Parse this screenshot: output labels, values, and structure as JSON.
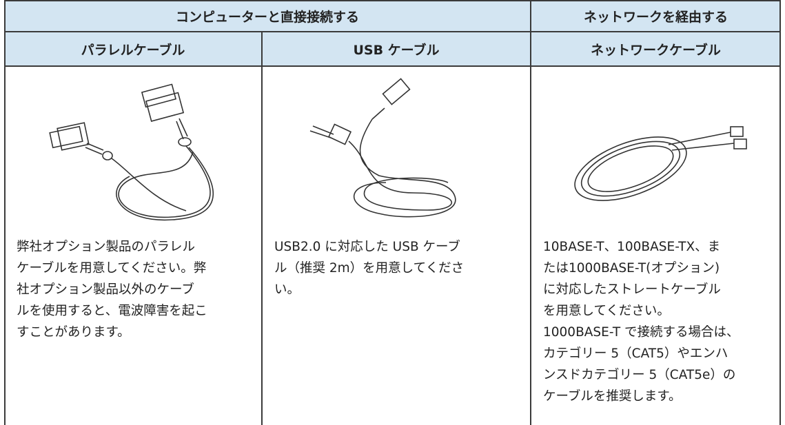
{
  "table": {
    "header_top": [
      "コンピューターと直接接続する",
      "ネットワークを経由する"
    ],
    "header_sub": [
      "パラレルケーブル",
      "USB ケーブル",
      "ネットワークケーブル"
    ],
    "cells": [
      {
        "lines": [
          "弊社オプション製品のパラレル",
          "ケーブルを用意してください。弊",
          "社オプション製品以外のケーブ",
          "ルを使用すると、電波障害を起こ",
          "すことがあります。"
        ]
      },
      {
        "lines": [
          "USB2.0 に対応した USB ケーブ",
          "ル（推奨 2m）を用意してくださ",
          "い。"
        ]
      },
      {
        "lines": [
          "10BASE-T、100BASE-TX、ま",
          "たは1000BASE-T(オプション)",
          "に対応したストレートケーブル",
          "を用意してください。",
          "1000BASE-T で接続する場合は、",
          "カテゴリー 5（CAT5）やエンハ",
          "ンスドカテゴリー 5（CAT5e）の",
          "ケーブルを推奨します。"
        ]
      }
    ]
  }
}
